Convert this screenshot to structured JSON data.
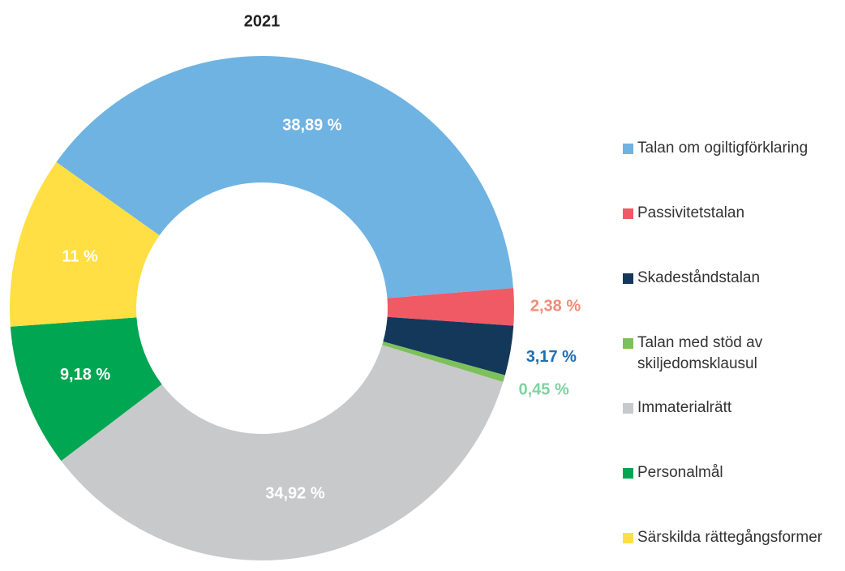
{
  "chart_data": {
    "type": "donut",
    "title": "2021",
    "categories": [
      "Talan om ogiltigförklaring",
      "Passivitetstalan",
      "Skadeståndstalan",
      "Talan med stöd av skiljedomsklausul",
      "Immaterialrätt",
      "Personalmål",
      "Särskilda rättegångsformer"
    ],
    "values": [
      38.89,
      2.38,
      3.17,
      0.45,
      34.92,
      9.18,
      11
    ],
    "value_labels": [
      "38,89 %",
      "2,38 %",
      "3,17 %",
      "0,45 %",
      "34,92 %",
      "9,18 %",
      "11 %"
    ],
    "colors": [
      "#6fb3e2",
      "#f05a64",
      "#13385a",
      "#7dc15a",
      "#c8c9cb",
      "#00a651",
      "#ffdf43"
    ],
    "label_colors": [
      "#ffffff",
      "#f28b78",
      "#1e6fb3",
      "#7fd3a0",
      "#ffffff",
      "#ffffff",
      "#ffffff"
    ]
  }
}
